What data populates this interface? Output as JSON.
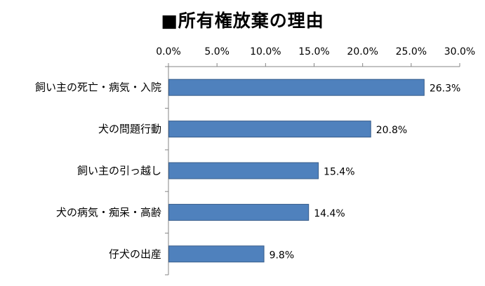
{
  "chart_data": {
    "type": "bar",
    "orientation": "horizontal",
    "title": "■所有権放棄の理由",
    "xlabel": "",
    "ylabel": "",
    "categories": [
      "飼い主の死亡・病気・入院",
      "犬の問題行動",
      "飼い主の引っ越し",
      "犬の病気・痴呆・高齢",
      "仔犬の出産"
    ],
    "values": [
      26.3,
      20.8,
      15.4,
      14.4,
      9.8
    ],
    "data_labels": [
      "26.3%",
      "20.8%",
      "15.4%",
      "14.4%",
      "9.8%"
    ],
    "xlim": [
      0,
      30
    ],
    "ticks": [
      0,
      5,
      10,
      15,
      20,
      25,
      30
    ],
    "tick_labels": [
      "0.0%",
      "5.0%",
      "10.0%",
      "15.0%",
      "20.0%",
      "25.0%",
      "30.0%"
    ],
    "axis_position": "top",
    "grid": false,
    "legend": "none",
    "bar_color": "#4f81bd",
    "bar_border_color": "#385d8a"
  }
}
